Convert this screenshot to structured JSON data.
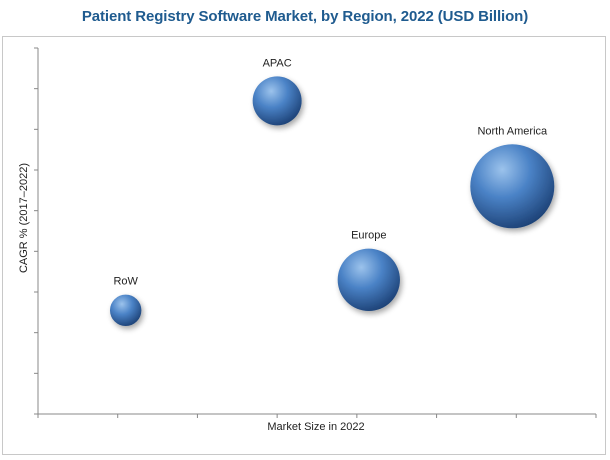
{
  "chart_data": {
    "type": "scatter",
    "subtype": "bubble",
    "title": "Patient Registry Software Market, by Region, 2022 (USD Billion)",
    "xlabel": "Market Size in 2022",
    "ylabel": "CAGR % (2017–2022)",
    "xlim": [
      0,
      7
    ],
    "ylim": [
      0,
      9
    ],
    "x_tick_labels_shown": false,
    "y_tick_labels_shown": false,
    "grid": false,
    "series": [
      {
        "name": "APAC",
        "x": 3.0,
        "y": 7.7,
        "size": 0.34
      },
      {
        "name": "North America",
        "x": 5.95,
        "y": 5.6,
        "size": 1.0
      },
      {
        "name": "Europe",
        "x": 4.15,
        "y": 3.3,
        "size": 0.55
      },
      {
        "name": "RoW",
        "x": 1.1,
        "y": 2.55,
        "size": 0.14
      }
    ]
  },
  "colors": {
    "title": "#1f5b8f",
    "bubble_light": "#9cc3ec",
    "bubble_mid": "#4a82c6",
    "bubble_dark": "#1b3f73",
    "axis": "#888888"
  }
}
